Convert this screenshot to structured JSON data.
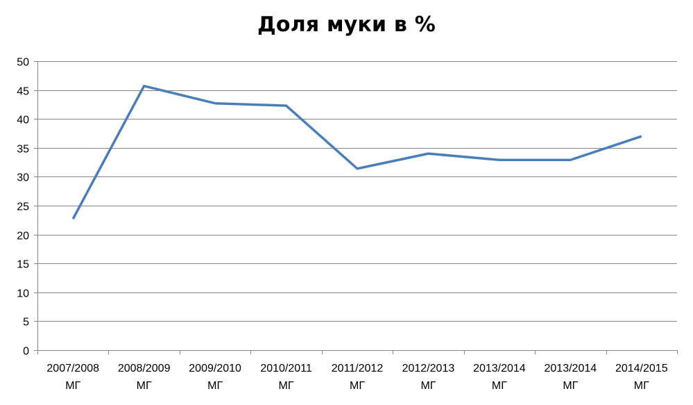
{
  "chart_data": {
    "type": "line",
    "title": "Доля муки в %",
    "xlabel": "",
    "ylabel": "",
    "categories": [
      [
        "2007/2008",
        "МГ"
      ],
      [
        "2008/2009",
        "МГ"
      ],
      [
        "2009/2010",
        "МГ"
      ],
      [
        "2010/2011",
        "МГ"
      ],
      [
        "2011/2012",
        "МГ"
      ],
      [
        "2012/2013",
        "МГ"
      ],
      [
        "2013/2014",
        "МГ"
      ],
      [
        "2013/2014",
        "МГ"
      ],
      [
        "2014/2015",
        "МГ"
      ]
    ],
    "series": [
      {
        "values": [
          22.7,
          45.7,
          42.7,
          42.3,
          31.4,
          34.0,
          32.9,
          32.9,
          37.0
        ],
        "color": "#4a7ebb"
      }
    ],
    "ylim": [
      0,
      50
    ],
    "yticks": [
      0,
      5,
      10,
      15,
      20,
      25,
      30,
      35,
      40,
      45,
      50
    ],
    "grid": true,
    "legend": "none",
    "colors": {
      "line": "#4a7ebb",
      "grid": "#868686",
      "axis": "#868686",
      "text": "#000000"
    }
  }
}
